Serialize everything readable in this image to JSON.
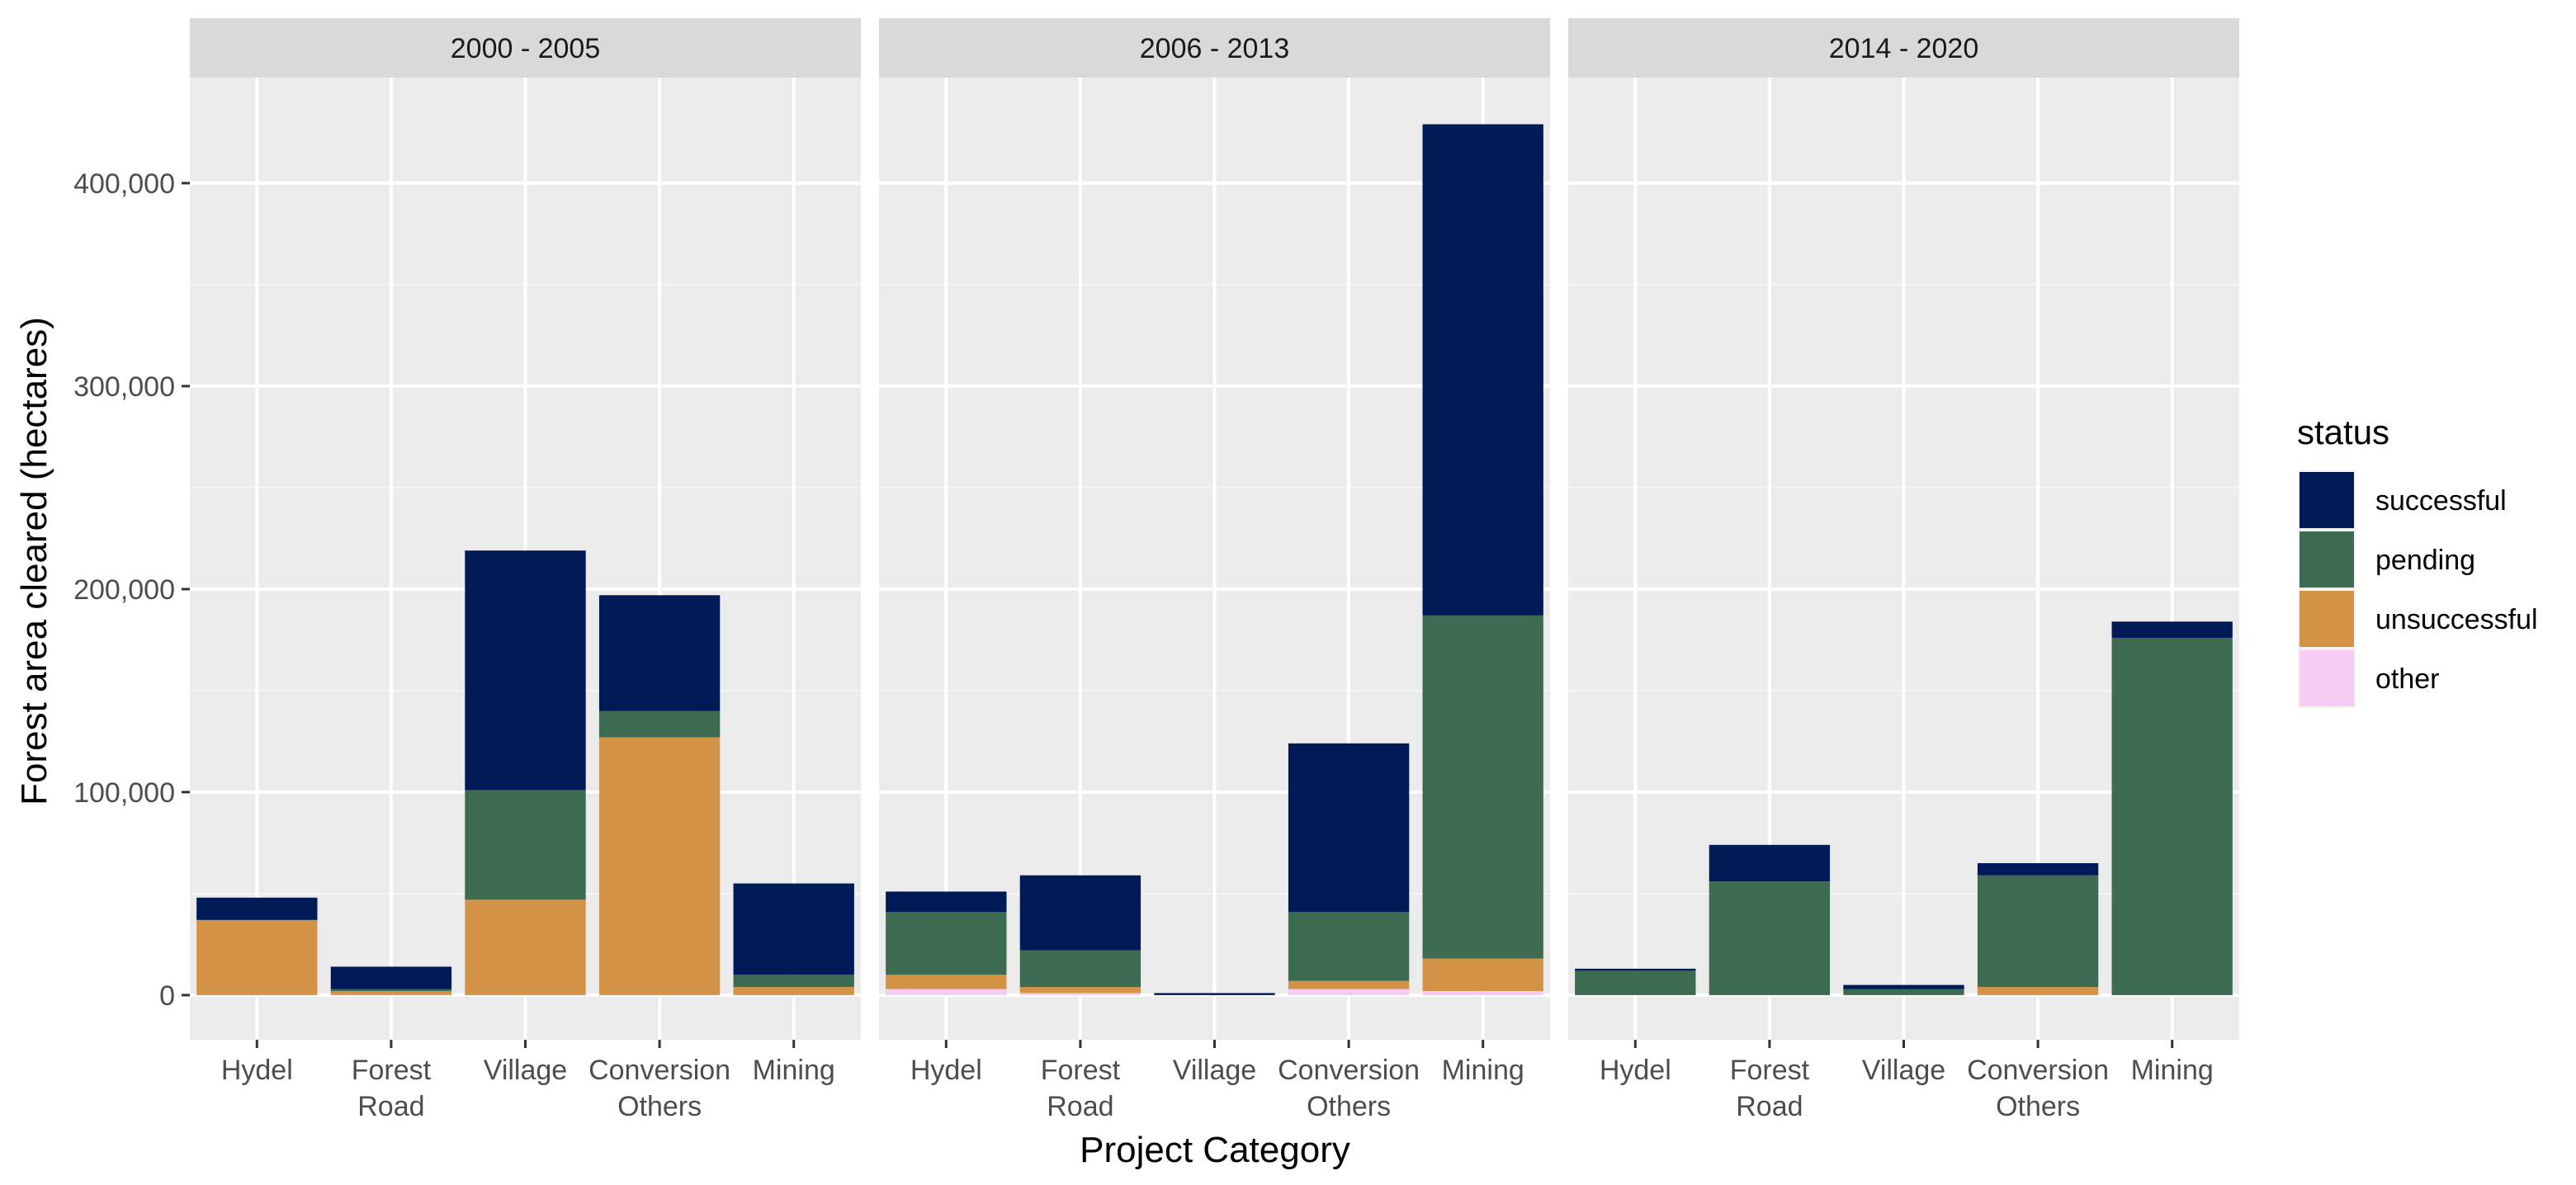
{
  "chart_data": {
    "type": "bar",
    "stacked": true,
    "facets": [
      "2000 - 2005",
      "2006 - 2013",
      "2014 - 2020"
    ],
    "categories": [
      [
        "Hydel"
      ],
      [
        "Forest",
        "Road"
      ],
      [
        "Village"
      ],
      [
        "Conversion",
        "Others"
      ],
      [
        "Mining"
      ]
    ],
    "xlabel": "Project Category",
    "ylabel": "Forest area cleared (hectares)",
    "ylim": [
      -22000,
      452000
    ],
    "yticks": [
      0,
      100000,
      200000,
      300000,
      400000
    ],
    "ytick_labels": [
      "0",
      "100,000",
      "200,000",
      "300,000",
      "400,000"
    ],
    "grid": true,
    "legend": {
      "title": "status",
      "position": "right",
      "entries": [
        {
          "name": "successful",
          "color": "#001a57"
        },
        {
          "name": "pending",
          "color": "#3d6b52"
        },
        {
          "name": "unsuccessful",
          "color": "#d39347"
        },
        {
          "name": "other",
          "color": "#f6cbf4"
        }
      ]
    },
    "stack_order": [
      "other",
      "unsuccessful",
      "pending",
      "successful"
    ],
    "panels": [
      {
        "facet": "2000 - 2005",
        "series": {
          "other": [
            0,
            0,
            0,
            0,
            0
          ],
          "unsuccessful": [
            37000,
            2000,
            47000,
            127000,
            4000
          ],
          "pending": [
            0,
            1000,
            54000,
            13000,
            6000
          ],
          "successful": [
            11000,
            11000,
            118000,
            57000,
            45000
          ]
        }
      },
      {
        "facet": "2006 - 2013",
        "series": {
          "other": [
            3000,
            1000,
            0,
            3000,
            2000
          ],
          "unsuccessful": [
            7000,
            3000,
            0,
            4000,
            16000
          ],
          "pending": [
            31000,
            18000,
            0,
            34000,
            169000
          ],
          "successful": [
            10000,
            37000,
            1000,
            83000,
            242000
          ]
        }
      },
      {
        "facet": "2014 - 2020",
        "series": {
          "other": [
            0,
            0,
            0,
            0,
            0
          ],
          "unsuccessful": [
            0,
            0,
            0,
            4000,
            0
          ],
          "pending": [
            12000,
            56000,
            3000,
            55000,
            176000
          ],
          "successful": [
            1000,
            18000,
            2000,
            6000,
            8000
          ]
        }
      }
    ]
  }
}
